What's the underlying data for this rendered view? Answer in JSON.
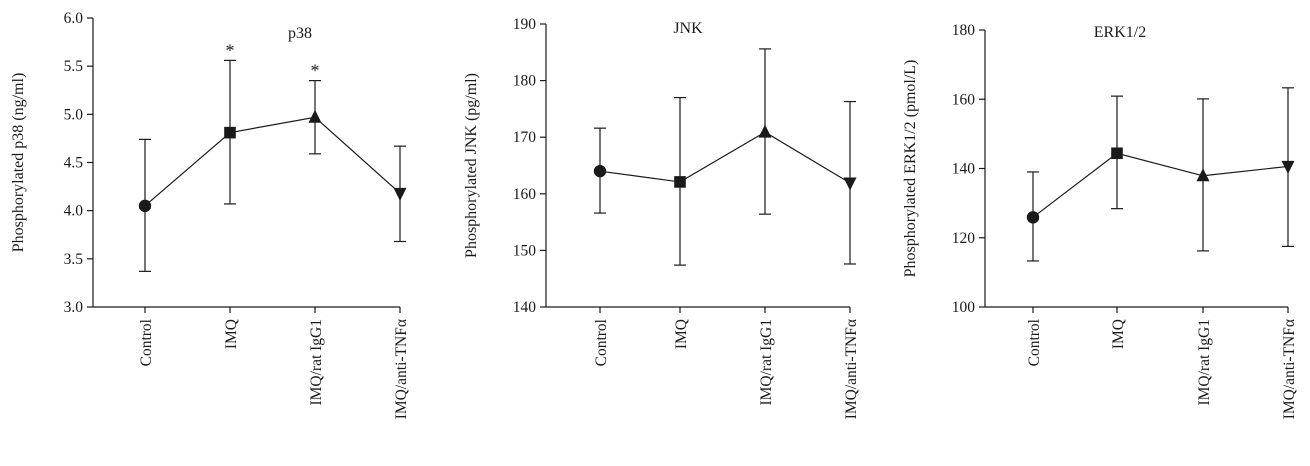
{
  "chart_data": [
    {
      "type": "line",
      "title": "p38",
      "xlabel": "",
      "ylabel": "Phosphorylated p38 (ng/ml)",
      "categories": [
        "Control",
        "IMQ",
        "IMQ/rat IgG1",
        "IMQ/anti-TNFα"
      ],
      "ylim": [
        3.0,
        6.0
      ],
      "yticks": [
        "3.0",
        "3.5",
        "4.0",
        "4.5",
        "5.0",
        "5.5",
        "6.0"
      ],
      "grid": false,
      "series": [
        {
          "values": [
            4.05,
            4.81,
            4.97,
            4.18
          ],
          "error_upper": [
            4.74,
            5.56,
            5.35,
            4.67
          ],
          "error_lower": [
            3.37,
            4.07,
            4.59,
            3.68
          ],
          "markers": [
            "circle",
            "square",
            "triangle-up",
            "triangle-down"
          ]
        }
      ],
      "annotations": [
        {
          "category": "IMQ",
          "text": "*"
        },
        {
          "category": "IMQ/rat IgG1",
          "text": "*"
        }
      ]
    },
    {
      "type": "line",
      "title": "JNK",
      "xlabel": "",
      "ylabel": "Phosphorylated JNK (pg/ml)",
      "categories": [
        "Control",
        "IMQ",
        "IMQ/rat IgG1",
        "IMQ/anti-TNFα"
      ],
      "ylim": [
        140,
        190
      ],
      "yticks": [
        "140",
        "150",
        "160",
        "170",
        "180",
        "190"
      ],
      "grid": false,
      "series": [
        {
          "values": [
            164.0,
            162.1,
            170.9,
            161.9
          ],
          "error_upper": [
            171.6,
            177.0,
            185.6,
            176.3
          ],
          "error_lower": [
            156.6,
            147.4,
            156.4,
            147.6
          ],
          "markers": [
            "circle",
            "square",
            "triangle-up",
            "triangle-down"
          ]
        }
      ],
      "annotations": []
    },
    {
      "type": "line",
      "title": "ERK1/2",
      "xlabel": "",
      "ylabel": "Phosphorylated ERK1/2 (pmol/L)",
      "categories": [
        "Control",
        "IMQ",
        "IMQ/rat IgG1",
        "IMQ/anti-TNFα"
      ],
      "ylim": [
        100,
        180
      ],
      "yticks": [
        "100",
        "120",
        "140",
        "160",
        "180"
      ],
      "grid": false,
      "series": [
        {
          "values": [
            125.9,
            144.4,
            137.9,
            140.6
          ],
          "error_upper": [
            139.0,
            160.9,
            160.1,
            163.3
          ],
          "error_lower": [
            113.3,
            128.4,
            116.2,
            117.5
          ],
          "markers": [
            "circle",
            "square",
            "triangle-up",
            "triangle-down"
          ]
        }
      ],
      "annotations": []
    }
  ]
}
